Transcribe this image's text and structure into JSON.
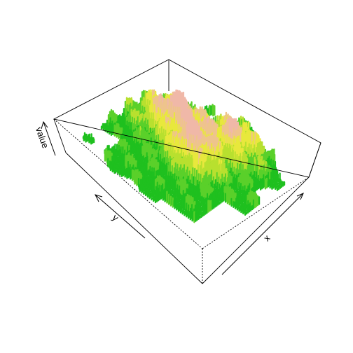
{
  "chart_data": {
    "type": "surface-3d",
    "title": "",
    "axis_labels": {
      "x": "x",
      "y": "y",
      "z": "value"
    },
    "tick_labels": false,
    "box": "full",
    "grid": false,
    "color_ramp": [
      "#1fc01f",
      "#5ad02a",
      "#b8e02f",
      "#e8e83c",
      "#eec48c",
      "#f0b8a8"
    ],
    "surface_description_levels": [
      0.0,
      0.2,
      0.4,
      0.6,
      0.8,
      1.0
    ]
  }
}
